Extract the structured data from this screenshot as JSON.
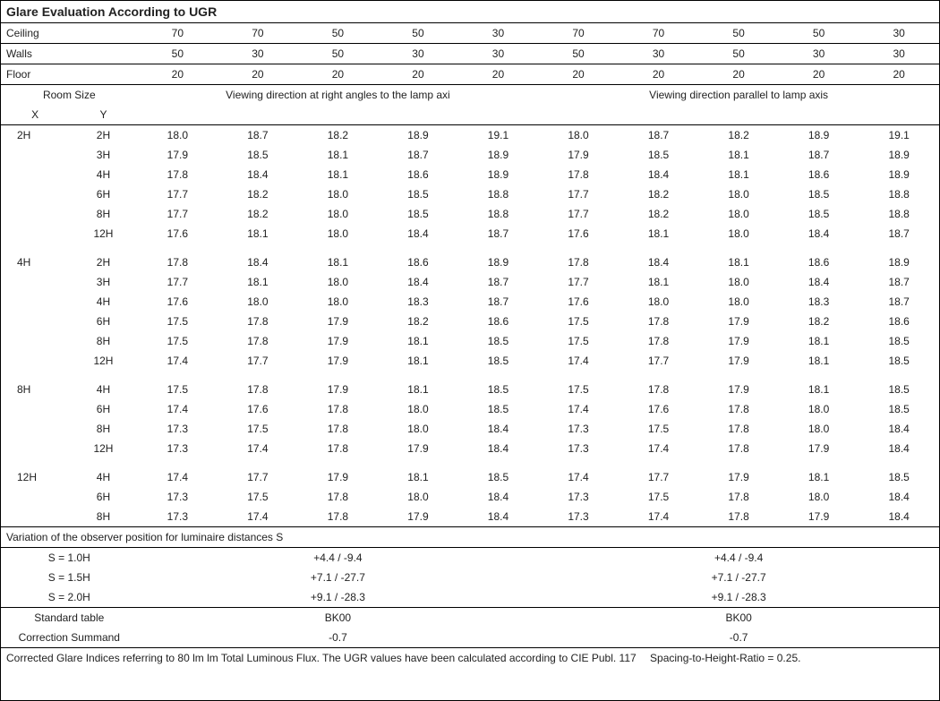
{
  "title": "Glare Evaluation According to UGR",
  "param_rows": {
    "ceiling": {
      "label": "Ceiling",
      "left": [
        "70",
        "70",
        "50",
        "50",
        "30"
      ],
      "right": [
        "70",
        "70",
        "50",
        "50",
        "30"
      ]
    },
    "walls": {
      "label": "Walls",
      "left": [
        "50",
        "30",
        "50",
        "30",
        "30"
      ],
      "right": [
        "50",
        "30",
        "50",
        "30",
        "30"
      ]
    },
    "floor": {
      "label": "Floor",
      "left": [
        "20",
        "20",
        "20",
        "20",
        "20"
      ],
      "right": [
        "20",
        "20",
        "20",
        "20",
        "20"
      ]
    }
  },
  "col_heads": {
    "room_size": "Room Size",
    "x": "X",
    "y": "Y",
    "left": "Viewing direction at right angles to the lamp axi",
    "right": "Viewing direction parallel to lamp axis"
  },
  "groups": [
    {
      "x": "2H",
      "rows": [
        {
          "y": "2H",
          "l": [
            "18.0",
            "18.7",
            "18.2",
            "18.9",
            "19.1"
          ],
          "r": [
            "18.0",
            "18.7",
            "18.2",
            "18.9",
            "19.1"
          ]
        },
        {
          "y": "3H",
          "l": [
            "17.9",
            "18.5",
            "18.1",
            "18.7",
            "18.9"
          ],
          "r": [
            "17.9",
            "18.5",
            "18.1",
            "18.7",
            "18.9"
          ]
        },
        {
          "y": "4H",
          "l": [
            "17.8",
            "18.4",
            "18.1",
            "18.6",
            "18.9"
          ],
          "r": [
            "17.8",
            "18.4",
            "18.1",
            "18.6",
            "18.9"
          ]
        },
        {
          "y": "6H",
          "l": [
            "17.7",
            "18.2",
            "18.0",
            "18.5",
            "18.8"
          ],
          "r": [
            "17.7",
            "18.2",
            "18.0",
            "18.5",
            "18.8"
          ]
        },
        {
          "y": "8H",
          "l": [
            "17.7",
            "18.2",
            "18.0",
            "18.5",
            "18.8"
          ],
          "r": [
            "17.7",
            "18.2",
            "18.0",
            "18.5",
            "18.8"
          ]
        },
        {
          "y": "12H",
          "l": [
            "17.6",
            "18.1",
            "18.0",
            "18.4",
            "18.7"
          ],
          "r": [
            "17.6",
            "18.1",
            "18.0",
            "18.4",
            "18.7"
          ]
        }
      ]
    },
    {
      "x": "4H",
      "rows": [
        {
          "y": "2H",
          "l": [
            "17.8",
            "18.4",
            "18.1",
            "18.6",
            "18.9"
          ],
          "r": [
            "17.8",
            "18.4",
            "18.1",
            "18.6",
            "18.9"
          ]
        },
        {
          "y": "3H",
          "l": [
            "17.7",
            "18.1",
            "18.0",
            "18.4",
            "18.7"
          ],
          "r": [
            "17.7",
            "18.1",
            "18.0",
            "18.4",
            "18.7"
          ]
        },
        {
          "y": "4H",
          "l": [
            "17.6",
            "18.0",
            "18.0",
            "18.3",
            "18.7"
          ],
          "r": [
            "17.6",
            "18.0",
            "18.0",
            "18.3",
            "18.7"
          ]
        },
        {
          "y": "6H",
          "l": [
            "17.5",
            "17.8",
            "17.9",
            "18.2",
            "18.6"
          ],
          "r": [
            "17.5",
            "17.8",
            "17.9",
            "18.2",
            "18.6"
          ]
        },
        {
          "y": "8H",
          "l": [
            "17.5",
            "17.8",
            "17.9",
            "18.1",
            "18.5"
          ],
          "r": [
            "17.5",
            "17.8",
            "17.9",
            "18.1",
            "18.5"
          ]
        },
        {
          "y": "12H",
          "l": [
            "17.4",
            "17.7",
            "17.9",
            "18.1",
            "18.5"
          ],
          "r": [
            "17.4",
            "17.7",
            "17.9",
            "18.1",
            "18.5"
          ]
        }
      ]
    },
    {
      "x": "8H",
      "rows": [
        {
          "y": "4H",
          "l": [
            "17.5",
            "17.8",
            "17.9",
            "18.1",
            "18.5"
          ],
          "r": [
            "17.5",
            "17.8",
            "17.9",
            "18.1",
            "18.5"
          ]
        },
        {
          "y": "6H",
          "l": [
            "17.4",
            "17.6",
            "17.8",
            "18.0",
            "18.5"
          ],
          "r": [
            "17.4",
            "17.6",
            "17.8",
            "18.0",
            "18.5"
          ]
        },
        {
          "y": "8H",
          "l": [
            "17.3",
            "17.5",
            "17.8",
            "18.0",
            "18.4"
          ],
          "r": [
            "17.3",
            "17.5",
            "17.8",
            "18.0",
            "18.4"
          ]
        },
        {
          "y": "12H",
          "l": [
            "17.3",
            "17.4",
            "17.8",
            "17.9",
            "18.4"
          ],
          "r": [
            "17.3",
            "17.4",
            "17.8",
            "17.9",
            "18.4"
          ]
        }
      ]
    },
    {
      "x": "12H",
      "rows": [
        {
          "y": "4H",
          "l": [
            "17.4",
            "17.7",
            "17.9",
            "18.1",
            "18.5"
          ],
          "r": [
            "17.4",
            "17.7",
            "17.9",
            "18.1",
            "18.5"
          ]
        },
        {
          "y": "6H",
          "l": [
            "17.3",
            "17.5",
            "17.8",
            "18.0",
            "18.4"
          ],
          "r": [
            "17.3",
            "17.5",
            "17.8",
            "18.0",
            "18.4"
          ]
        },
        {
          "y": "8H",
          "l": [
            "17.3",
            "17.4",
            "17.8",
            "17.9",
            "18.4"
          ],
          "r": [
            "17.3",
            "17.4",
            "17.8",
            "17.9",
            "18.4"
          ]
        }
      ]
    }
  ],
  "variation": {
    "header": "Variation of the observer position for luminaire distances S",
    "rows": [
      {
        "s": "S = 1.0H",
        "l": "+4.4 / -9.4",
        "r": "+4.4 / -9.4"
      },
      {
        "s": "S = 1.5H",
        "l": "+7.1 / -27.7",
        "r": "+7.1 / -27.7"
      },
      {
        "s": "S = 2.0H",
        "l": "+9.1 / -28.3",
        "r": "+9.1 / -28.3"
      }
    ]
  },
  "standard": {
    "label1": "Standard table",
    "v1l": "BK00",
    "v1r": "BK00",
    "label2": "Correction Summand",
    "v2l": "-0.7",
    "v2r": "-0.7"
  },
  "footer": "Corrected Glare Indices referring to 80 lm lm Total Luminous Flux. The UGR values have been calculated according to CIE Publ. 117  Spacing-to-Height-Ratio = 0.25."
}
